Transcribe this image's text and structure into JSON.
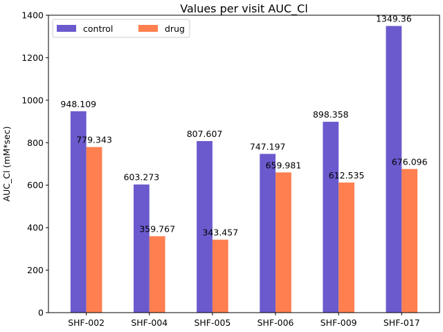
{
  "chart_data": {
    "type": "bar",
    "title": "Values per visit AUC_Cl",
    "xlabel": "",
    "ylabel": "AUC_Cl (mM*sec)",
    "categories": [
      "SHF-002",
      "SHF-004",
      "SHF-005",
      "SHF-006",
      "SHF-009",
      "SHF-017"
    ],
    "series": [
      {
        "name": "control",
        "color": "#6a5acd",
        "values": [
          948.109,
          603.273,
          807.607,
          747.197,
          898.358,
          1349.36
        ],
        "labels": [
          "948.109",
          "603.273",
          "807.607",
          "747.197",
          "898.358",
          "1349.36"
        ]
      },
      {
        "name": "drug",
        "color": "#ff7f50",
        "values": [
          779.343,
          359.767,
          343.457,
          659.981,
          612.535,
          676.096
        ],
        "labels": [
          "779.343",
          "359.767",
          "343.457",
          "659.981",
          "612.535",
          "676.096"
        ]
      }
    ],
    "ylim": [
      0,
      1400
    ],
    "yticks": [
      0,
      200,
      400,
      600,
      800,
      1000,
      1200,
      1400
    ],
    "grid": false,
    "legend": {
      "position": "top-left",
      "columns": 2
    }
  }
}
